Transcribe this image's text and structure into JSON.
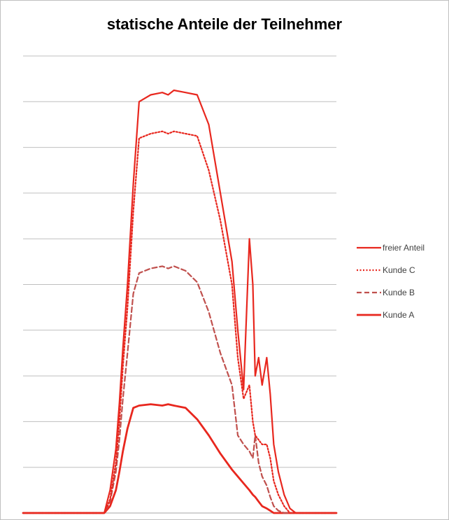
{
  "chart_data": {
    "type": "line",
    "title": "statische Anteile der Teilnehmer",
    "xlabel": "",
    "ylabel": "",
    "grid": true,
    "legend_position": "right",
    "ylim": [
      0,
      10
    ],
    "x": [
      0,
      7,
      7.5,
      8,
      8.3,
      8.6,
      9,
      9.5,
      10,
      11,
      12,
      12.5,
      13,
      14,
      15,
      16,
      17,
      18,
      18.5,
      19,
      19.5,
      19.8,
      20,
      20.3,
      20.6,
      21,
      21.3,
      21.6,
      22,
      22.5,
      23,
      23.5,
      24,
      25,
      27
    ],
    "series": [
      {
        "name": "freier Anteil",
        "style": "solid",
        "color": "#e8271e",
        "width": 2.2,
        "values": [
          0,
          0,
          0.5,
          1.4,
          2.4,
          3.6,
          5.0,
          7.2,
          9.0,
          9.15,
          9.2,
          9.15,
          9.25,
          9.2,
          9.15,
          8.5,
          7.0,
          5.5,
          4.0,
          2.7,
          6.0,
          5.0,
          3.0,
          3.4,
          2.8,
          3.4,
          2.6,
          1.5,
          0.9,
          0.4,
          0.1,
          0,
          0,
          0,
          0
        ]
      },
      {
        "name": "Kunde C",
        "style": "dotted",
        "color": "#e8271e",
        "width": 2.2,
        "values": [
          0,
          0,
          0.3,
          1.1,
          2.0,
          3.2,
          4.5,
          6.6,
          8.2,
          8.3,
          8.35,
          8.3,
          8.35,
          8.3,
          8.25,
          7.5,
          6.4,
          5.0,
          3.4,
          2.5,
          2.8,
          2.0,
          1.7,
          1.6,
          1.5,
          1.5,
          1.2,
          0.7,
          0.4,
          0.15,
          0,
          0,
          0,
          0,
          0
        ]
      },
      {
        "name": "Kunde B",
        "style": "dashed",
        "color": "#c0504d",
        "width": 2.2,
        "values": [
          0,
          0,
          0.25,
          0.9,
          1.6,
          2.5,
          3.5,
          4.8,
          5.25,
          5.35,
          5.4,
          5.35,
          5.4,
          5.3,
          5.05,
          4.4,
          3.5,
          2.8,
          1.7,
          1.5,
          1.35,
          1.2,
          1.7,
          1.1,
          0.8,
          0.6,
          0.35,
          0.15,
          0.05,
          0,
          0,
          0,
          0,
          0,
          0
        ]
      },
      {
        "name": "Kunde A",
        "style": "solid",
        "color": "#e8271e",
        "width": 2.8,
        "values": [
          0,
          0,
          0.15,
          0.5,
          0.9,
          1.35,
          1.85,
          2.3,
          2.35,
          2.38,
          2.35,
          2.38,
          2.35,
          2.3,
          2.05,
          1.7,
          1.3,
          0.95,
          0.8,
          0.65,
          0.5,
          0.4,
          0.35,
          0.25,
          0.15,
          0.1,
          0.05,
          0,
          0,
          0,
          0,
          0,
          0,
          0,
          0
        ]
      }
    ]
  }
}
